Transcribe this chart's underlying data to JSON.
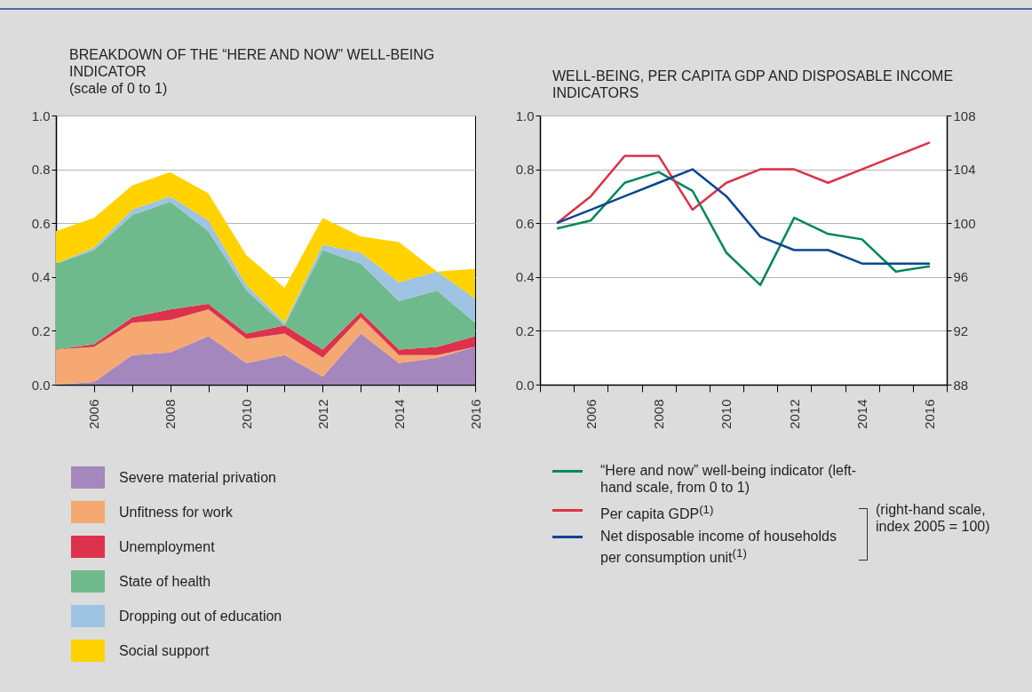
{
  "chart_data": [
    {
      "type": "area",
      "title": "BREAKDOWN OF THE “HERE AND NOW” WELL-BEING INDICATOR",
      "subtitle": "(scale of 0 to 1)",
      "stacked": true,
      "legend": "bottom",
      "grid": "y",
      "x": [
        2005,
        2006,
        2007,
        2008,
        2009,
        2010,
        2011,
        2012,
        2013,
        2014,
        2015,
        2016
      ],
      "xlim": [
        2005,
        2016
      ],
      "xticks": [
        {
          "value": 2006,
          "label": "2006"
        },
        {
          "value": 2007,
          "label": null
        },
        {
          "value": 2008,
          "label": "2008"
        },
        {
          "value": 2009,
          "label": null
        },
        {
          "value": 2010,
          "label": "2010"
        },
        {
          "value": 2011,
          "label": null
        },
        {
          "value": 2012,
          "label": "2012"
        },
        {
          "value": 2013,
          "label": null
        },
        {
          "value": 2014,
          "label": "2014"
        },
        {
          "value": 2015,
          "label": null
        },
        {
          "value": 2016,
          "label": "2016"
        }
      ],
      "ylim": [
        0,
        1
      ],
      "yticks": [
        {
          "value": 0,
          "label": "0.0"
        },
        {
          "value": 0.2,
          "label": "0.2"
        },
        {
          "value": 0.4,
          "label": "0.4"
        },
        {
          "value": 0.6,
          "label": "0.6"
        },
        {
          "value": 0.8,
          "label": "0.8"
        },
        {
          "value": 1,
          "label": "1.0"
        }
      ],
      "series": [
        {
          "name": "Severe material privation",
          "color": "#a487bd",
          "values": [
            0,
            0.01,
            0.11,
            0.12,
            0.18,
            0.08,
            0.11,
            0.03,
            0.19,
            0.08,
            0.1,
            0.14
          ]
        },
        {
          "name": "Unfitness for work",
          "color": "#f5a872",
          "values": [
            0.13,
            0.13,
            0.12,
            0.12,
            0.1,
            0.09,
            0.08,
            0.07,
            0.06,
            0.03,
            0.01,
            0
          ]
        },
        {
          "name": "Unemployment",
          "color": "#dc324b",
          "values": [
            0,
            0.01,
            0.02,
            0.04,
            0.02,
            0.02,
            0.03,
            0.03,
            0.02,
            0.02,
            0.03,
            0.04
          ]
        },
        {
          "name": "State of health",
          "color": "#6fba8c",
          "values": [
            0.32,
            0.35,
            0.38,
            0.4,
            0.27,
            0.16,
            0,
            0.37,
            0.18,
            0.18,
            0.21,
            0.05
          ]
        },
        {
          "name": "Dropping out of education",
          "color": "#9ec3e3",
          "values": [
            0,
            0.01,
            0.02,
            0.02,
            0.04,
            0.02,
            0.01,
            0.02,
            0.04,
            0.07,
            0.07,
            0.09
          ]
        },
        {
          "name": "Social support",
          "color": "#ffd200",
          "values": [
            0.12,
            0.11,
            0.09,
            0.09,
            0.1,
            0.11,
            0.13,
            0.1,
            0.06,
            0.15,
            0,
            0.11
          ]
        }
      ]
    },
    {
      "type": "line",
      "title": "WELL-BEING, PER CAPITA GDP AND DISPOSABLE INCOME INDICATORS",
      "legend": "bottom",
      "grid": "y",
      "line_style": "solid",
      "categories": [
        null,
        "2006",
        null,
        "2008",
        null,
        "2010",
        null,
        "2012",
        null,
        "2014",
        null,
        "2016"
      ],
      "ylim": [
        0,
        1
      ],
      "yticks": [
        {
          "value": 0,
          "label": "0.0"
        },
        {
          "value": 0.2,
          "label": "0.2"
        },
        {
          "value": 0.4,
          "label": "0.4"
        },
        {
          "value": 0.6,
          "label": "0.6"
        },
        {
          "value": 0.8,
          "label": "0.8"
        },
        {
          "value": 1,
          "label": "1.0"
        }
      ],
      "y2lim": [
        88,
        108
      ],
      "y2ticks": [
        88,
        92,
        96,
        100,
        104,
        108
      ],
      "annotations": [
        "(right-hand scale, index 2005 = 100)"
      ],
      "series": [
        {
          "name": "“Here and now” well-being indicator (left-hand scale, from 0 to 1)",
          "color": "#00875a",
          "values": [
            0.58,
            0.61,
            0.75,
            0.79,
            0.72,
            0.49,
            0.37,
            0.62,
            0.56,
            0.54,
            0.42,
            0.44
          ]
        },
        {
          "name": "Per capita GDP$^{(1)}$",
          "color": "#dc3246",
          "axis": "y2",
          "values": [
            100,
            102,
            105,
            105,
            101,
            103,
            104,
            104,
            103,
            104,
            105,
            106
          ]
        },
        {
          "name": "Net disposable income of households per consumption unit$^{(1)}$",
          "color": "#0a4690",
          "axis": "y2",
          "values": [
            100,
            101,
            102,
            103,
            104,
            102,
            99,
            98,
            98,
            97,
            97,
            97
          ]
        }
      ]
    }
  ]
}
